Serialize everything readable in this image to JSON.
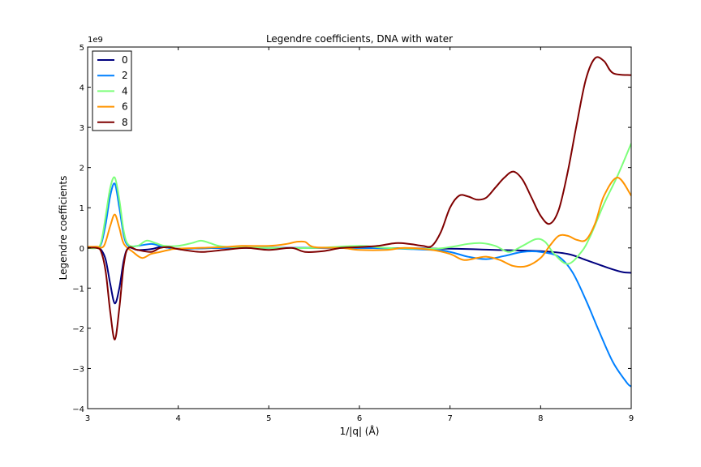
{
  "chart_data": {
    "type": "line",
    "title": "Legendre coefficients, DNA with water",
    "xlabel": "1/|q| (Å)",
    "ylabel": "Legendre coefficients",
    "y_scale_label": "1e9",
    "xlim": [
      3,
      9
    ],
    "ylim": [
      -4,
      5
    ],
    "x_ticks": [
      3,
      4,
      5,
      6,
      7,
      8,
      9
    ],
    "y_ticks": [
      -4,
      -3,
      -2,
      -1,
      0,
      1,
      2,
      3,
      4,
      5
    ],
    "x_tick_labels": [
      "3",
      "4",
      "5",
      "6",
      "7",
      "8",
      "9"
    ],
    "y_tick_labels": [
      "−4",
      "−3",
      "−2",
      "−1",
      "0",
      "1",
      "2",
      "3",
      "4",
      "5"
    ],
    "grid": false,
    "legend_position": "top-left",
    "series": [
      {
        "name": "0",
        "color": "#00007f",
        "points": [
          [
            3.0,
            0.0
          ],
          [
            3.1,
            0.0
          ],
          [
            3.15,
            -0.05
          ],
          [
            3.2,
            -0.3
          ],
          [
            3.25,
            -0.9
          ],
          [
            3.3,
            -1.38
          ],
          [
            3.35,
            -1.0
          ],
          [
            3.4,
            -0.3
          ],
          [
            3.45,
            0.0
          ],
          [
            3.55,
            -0.05
          ],
          [
            3.7,
            -0.03
          ],
          [
            3.8,
            0.02
          ],
          [
            3.9,
            0.0
          ],
          [
            4.0,
            -0.02
          ],
          [
            4.5,
            0.0
          ],
          [
            5.0,
            0.0
          ],
          [
            6.0,
            0.0
          ],
          [
            7.0,
            -0.02
          ],
          [
            7.5,
            -0.05
          ],
          [
            8.0,
            -0.08
          ],
          [
            8.3,
            -0.15
          ],
          [
            8.5,
            -0.3
          ],
          [
            8.75,
            -0.5
          ],
          [
            8.9,
            -0.6
          ],
          [
            9.0,
            -0.62
          ]
        ]
      },
      {
        "name": "2",
        "color": "#0080ff",
        "points": [
          [
            3.0,
            0.0
          ],
          [
            3.1,
            0.0
          ],
          [
            3.15,
            0.1
          ],
          [
            3.2,
            0.6
          ],
          [
            3.25,
            1.3
          ],
          [
            3.3,
            1.6
          ],
          [
            3.35,
            1.0
          ],
          [
            3.4,
            0.3
          ],
          [
            3.45,
            0.05
          ],
          [
            3.55,
            0.05
          ],
          [
            3.7,
            0.1
          ],
          [
            3.8,
            0.05
          ],
          [
            3.9,
            0.0
          ],
          [
            4.0,
            -0.02
          ],
          [
            4.5,
            0.0
          ],
          [
            5.0,
            0.0
          ],
          [
            6.0,
            0.0
          ],
          [
            6.8,
            -0.05
          ],
          [
            7.0,
            -0.1
          ],
          [
            7.2,
            -0.22
          ],
          [
            7.4,
            -0.28
          ],
          [
            7.6,
            -0.2
          ],
          [
            7.8,
            -0.1
          ],
          [
            8.0,
            -0.1
          ],
          [
            8.2,
            -0.22
          ],
          [
            8.35,
            -0.6
          ],
          [
            8.5,
            -1.3
          ],
          [
            8.65,
            -2.1
          ],
          [
            8.8,
            -2.85
          ],
          [
            8.95,
            -3.35
          ],
          [
            9.0,
            -3.45
          ]
        ]
      },
      {
        "name": "4",
        "color": "#7dff7a",
        "points": [
          [
            3.0,
            0.0
          ],
          [
            3.1,
            0.0
          ],
          [
            3.15,
            0.15
          ],
          [
            3.2,
            0.8
          ],
          [
            3.25,
            1.5
          ],
          [
            3.3,
            1.75
          ],
          [
            3.35,
            1.2
          ],
          [
            3.4,
            0.4
          ],
          [
            3.45,
            0.08
          ],
          [
            3.55,
            0.05
          ],
          [
            3.65,
            0.18
          ],
          [
            3.75,
            0.12
          ],
          [
            3.85,
            0.05
          ],
          [
            4.0,
            0.05
          ],
          [
            4.15,
            0.12
          ],
          [
            4.25,
            0.18
          ],
          [
            4.35,
            0.12
          ],
          [
            4.45,
            0.05
          ],
          [
            4.6,
            0.02
          ],
          [
            5.0,
            0.0
          ],
          [
            5.5,
            0.0
          ],
          [
            6.0,
            0.05
          ],
          [
            6.3,
            0.0
          ],
          [
            6.8,
            -0.02
          ],
          [
            7.0,
            0.02
          ],
          [
            7.2,
            0.1
          ],
          [
            7.35,
            0.12
          ],
          [
            7.5,
            0.05
          ],
          [
            7.65,
            -0.1
          ],
          [
            7.8,
            0.05
          ],
          [
            7.95,
            0.22
          ],
          [
            8.05,
            0.15
          ],
          [
            8.15,
            -0.15
          ],
          [
            8.3,
            -0.4
          ],
          [
            8.45,
            -0.1
          ],
          [
            8.55,
            0.3
          ],
          [
            8.7,
            1.1
          ],
          [
            8.85,
            1.8
          ],
          [
            9.0,
            2.6
          ]
        ]
      },
      {
        "name": "6",
        "color": "#ff9400",
        "points": [
          [
            3.0,
            0.03
          ],
          [
            3.1,
            0.03
          ],
          [
            3.18,
            0.05
          ],
          [
            3.25,
            0.55
          ],
          [
            3.3,
            0.83
          ],
          [
            3.35,
            0.5
          ],
          [
            3.4,
            0.1
          ],
          [
            3.5,
            -0.1
          ],
          [
            3.6,
            -0.25
          ],
          [
            3.7,
            -0.15
          ],
          [
            3.8,
            -0.1
          ],
          [
            3.9,
            -0.05
          ],
          [
            4.0,
            -0.02
          ],
          [
            4.5,
            0.02
          ],
          [
            4.7,
            0.05
          ],
          [
            5.0,
            0.05
          ],
          [
            5.2,
            0.1
          ],
          [
            5.3,
            0.15
          ],
          [
            5.4,
            0.15
          ],
          [
            5.5,
            0.02
          ],
          [
            5.8,
            0.0
          ],
          [
            6.0,
            -0.05
          ],
          [
            6.3,
            -0.05
          ],
          [
            6.5,
            0.0
          ],
          [
            6.8,
            -0.05
          ],
          [
            7.0,
            -0.15
          ],
          [
            7.15,
            -0.3
          ],
          [
            7.3,
            -0.25
          ],
          [
            7.4,
            -0.22
          ],
          [
            7.55,
            -0.3
          ],
          [
            7.7,
            -0.45
          ],
          [
            7.85,
            -0.45
          ],
          [
            8.0,
            -0.25
          ],
          [
            8.1,
            0.05
          ],
          [
            8.2,
            0.3
          ],
          [
            8.3,
            0.3
          ],
          [
            8.4,
            0.2
          ],
          [
            8.5,
            0.2
          ],
          [
            8.6,
            0.6
          ],
          [
            8.7,
            1.3
          ],
          [
            8.85,
            1.75
          ],
          [
            9.0,
            1.3
          ]
        ]
      },
      {
        "name": "8",
        "color": "#7f0000",
        "points": [
          [
            3.0,
            0.0
          ],
          [
            3.1,
            0.0
          ],
          [
            3.15,
            -0.1
          ],
          [
            3.2,
            -0.6
          ],
          [
            3.25,
            -1.6
          ],
          [
            3.3,
            -2.28
          ],
          [
            3.35,
            -1.5
          ],
          [
            3.4,
            -0.4
          ],
          [
            3.45,
            0.0
          ],
          [
            3.55,
            -0.05
          ],
          [
            3.7,
            -0.1
          ],
          [
            3.8,
            0.0
          ],
          [
            3.9,
            0.02
          ],
          [
            4.0,
            -0.03
          ],
          [
            4.25,
            -0.1
          ],
          [
            4.5,
            -0.05
          ],
          [
            4.75,
            0.0
          ],
          [
            5.0,
            -0.05
          ],
          [
            5.25,
            0.0
          ],
          [
            5.4,
            -0.1
          ],
          [
            5.6,
            -0.08
          ],
          [
            5.8,
            0.0
          ],
          [
            6.0,
            0.02
          ],
          [
            6.2,
            0.05
          ],
          [
            6.4,
            0.12
          ],
          [
            6.55,
            0.1
          ],
          [
            6.7,
            0.05
          ],
          [
            6.8,
            0.05
          ],
          [
            6.9,
            0.4
          ],
          [
            7.0,
            1.0
          ],
          [
            7.1,
            1.3
          ],
          [
            7.2,
            1.28
          ],
          [
            7.3,
            1.2
          ],
          [
            7.4,
            1.25
          ],
          [
            7.5,
            1.5
          ],
          [
            7.6,
            1.75
          ],
          [
            7.7,
            1.9
          ],
          [
            7.8,
            1.7
          ],
          [
            7.9,
            1.25
          ],
          [
            8.0,
            0.8
          ],
          [
            8.1,
            0.6
          ],
          [
            8.2,
            0.95
          ],
          [
            8.3,
            1.9
          ],
          [
            8.4,
            3.1
          ],
          [
            8.5,
            4.2
          ],
          [
            8.6,
            4.72
          ],
          [
            8.7,
            4.65
          ],
          [
            8.8,
            4.35
          ],
          [
            9.0,
            4.3
          ]
        ]
      }
    ]
  }
}
